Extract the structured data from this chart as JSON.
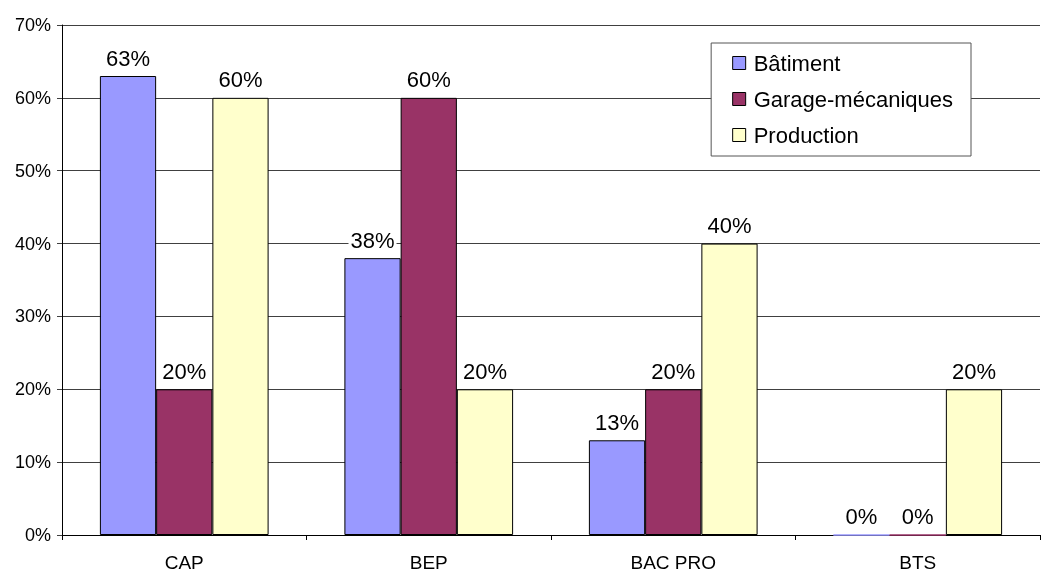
{
  "chart_data": {
    "type": "bar",
    "categories": [
      "CAP",
      "BEP",
      "BAC PRO",
      "BTS"
    ],
    "series": [
      {
        "name": "Bâtiment",
        "color": "#9999ff",
        "values": [
          63,
          38,
          13,
          0
        ],
        "value_labels": [
          "63%",
          "38%",
          "13%",
          "0%"
        ]
      },
      {
        "name": "Garage-mécaniques",
        "color": "#993366",
        "values": [
          20,
          60,
          20,
          0
        ],
        "value_labels": [
          "20%",
          "60%",
          "20%",
          "0%"
        ]
      },
      {
        "name": "Production",
        "color": "#ffffcc",
        "values": [
          60,
          20,
          40,
          20
        ],
        "value_labels": [
          "60%",
          "20%",
          "40%",
          "20%"
        ]
      }
    ],
    "ylim": [
      0,
      70
    ],
    "yticks": [
      {
        "value": 0,
        "label": "0%"
      },
      {
        "value": 10,
        "label": "10%"
      },
      {
        "value": 20,
        "label": "20%"
      },
      {
        "value": 30,
        "label": "30%"
      },
      {
        "value": 40,
        "label": "40%"
      },
      {
        "value": 50,
        "label": "50%"
      },
      {
        "value": 60,
        "label": "60%"
      },
      {
        "value": 70,
        "label": "70%"
      }
    ],
    "grid": "y",
    "legend": "top right"
  }
}
